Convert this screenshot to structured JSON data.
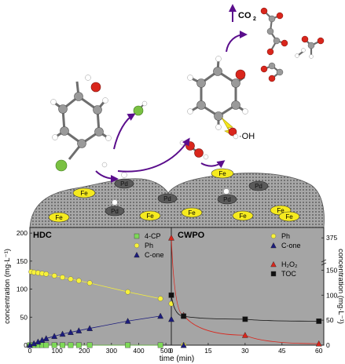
{
  "illustration": {
    "co2_label": "CO",
    "co2_sub": "2",
    "oh_label": "·OH",
    "pd_labels": [
      "Pd",
      "Pd",
      "Pd",
      "Pd",
      "Pd"
    ],
    "fe_labels": [
      "Fe",
      "Fe",
      "Fe",
      "Fe",
      "Fe",
      "Fe",
      "Fe",
      "Fe"
    ],
    "colors": {
      "support": "#9a9a9a",
      "fe": "#f5ea1f",
      "pd": "#5a5a5a",
      "arrow": "#5a0d8c",
      "carbon": "#888888",
      "oxygen": "#d9261c",
      "chlorine": "#7ac142",
      "hydrogen": "#ffffff",
      "lightning": "#f5e51c"
    }
  },
  "chart_data": [
    {
      "type": "scatter",
      "title": "HDC",
      "xlabel": "time (min)",
      "ylabel": "concentration (mg·L⁻¹)",
      "xlim": [
        0,
        520
      ],
      "ylim": [
        0,
        210
      ],
      "xticks": [
        "0",
        "100",
        "200",
        "300",
        "400",
        "500"
      ],
      "yticks": [
        "0",
        "50",
        "100",
        "150",
        "200"
      ],
      "legend_position": "top-right",
      "series": [
        {
          "name": "4-CP",
          "color": "#7ed957",
          "marker": "square",
          "x": [
            0,
            15,
            30,
            45,
            60,
            90,
            120,
            150,
            180,
            220,
            360,
            480
          ],
          "y": [
            0,
            0,
            0,
            0,
            0,
            0,
            0,
            0,
            0,
            0,
            0,
            0
          ]
        },
        {
          "name": "Ph",
          "color": "#f7f13a",
          "marker": "circle",
          "x": [
            5,
            15,
            30,
            45,
            60,
            90,
            120,
            150,
            180,
            220,
            360,
            480
          ],
          "y": [
            131,
            130,
            129,
            128,
            127,
            124,
            121,
            118,
            115,
            111,
            95,
            83
          ]
        },
        {
          "name": "C-one",
          "color": "#1c1c7d",
          "marker": "triangle",
          "x": [
            0,
            15,
            30,
            45,
            60,
            90,
            120,
            150,
            180,
            220,
            360,
            480
          ],
          "y": [
            0,
            3,
            6,
            9,
            12,
            16,
            20,
            23,
            26,
            30,
            43,
            52
          ]
        }
      ]
    },
    {
      "type": "scatter",
      "title": "CWPO",
      "xlabel": "time (min)",
      "ylabel": "concentration (mg·L⁻¹)",
      "xlim": [
        0,
        62
      ],
      "xticks": [
        "0",
        "15",
        "30",
        "45",
        "60"
      ],
      "y_axis_broken": true,
      "ylim_lower": [
        0,
        160
      ],
      "ylim_upper": [
        340,
        390
      ],
      "yticks": [
        "0",
        "50",
        "100",
        "150",
        "375"
      ],
      "legend_position": "right",
      "series": [
        {
          "name": "Ph",
          "color": "#f7f13a",
          "marker": "circle",
          "x": [
            0,
            5
          ],
          "y": [
            83,
            0
          ]
        },
        {
          "name": "C-one",
          "color": "#1c1c7d",
          "marker": "triangle",
          "x": [
            0,
            5
          ],
          "y": [
            52,
            0
          ]
        },
        {
          "name": "H₂O₂",
          "color": "#d9261c",
          "marker": "triangle",
          "x": [
            0,
            5,
            30,
            60
          ],
          "y": [
            375,
            60,
            20,
            3
          ]
        },
        {
          "name": "TOC",
          "color": "#111111",
          "marker": "square",
          "x": [
            0,
            5,
            30,
            60
          ],
          "y": [
            100,
            58,
            52,
            48
          ]
        }
      ]
    }
  ]
}
